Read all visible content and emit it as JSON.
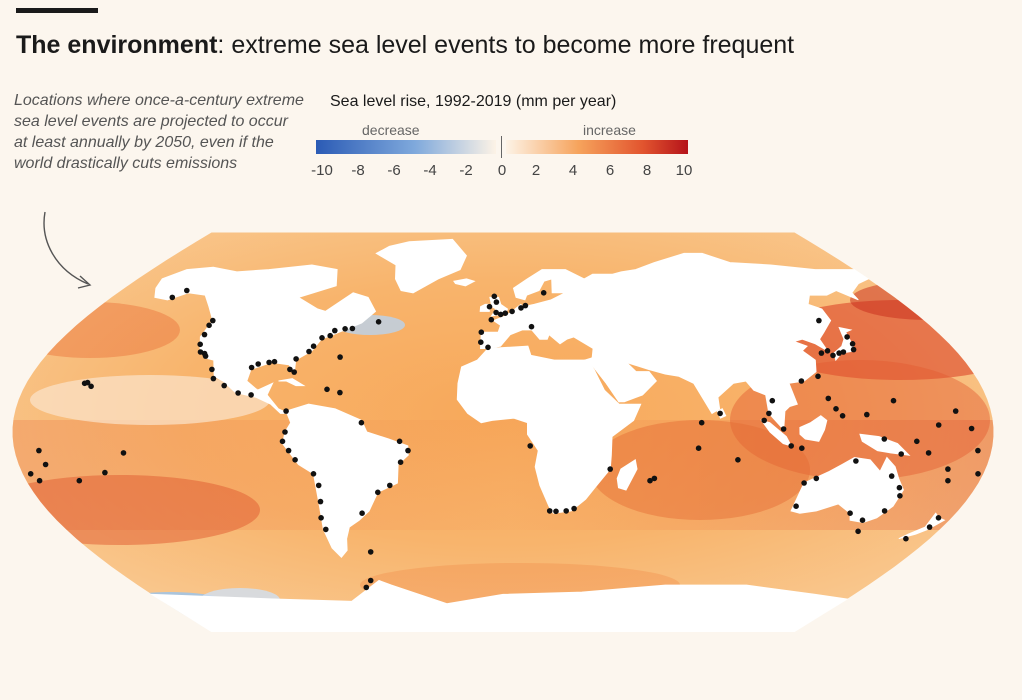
{
  "header": {
    "title_bold": "The environment",
    "title_rest": ": extreme sea level events to become more frequent"
  },
  "annotation": {
    "text": "Locations where once-a-century extreme sea level events are projected to occur at least annually by 2050, even if the world drastically cuts emissions"
  },
  "legend": {
    "title": "Sea level rise, 1992-2019 (mm per year)",
    "decrease_label": "decrease",
    "increase_label": "increase",
    "ticks": [
      "-10",
      "-8",
      "-6",
      "-4",
      "-2",
      "0",
      "2",
      "4",
      "6",
      "8",
      "10"
    ],
    "colors": {
      "decrease": "#2b5bb5",
      "neutral": "#fdf3e6",
      "increase": "#b5131a"
    }
  },
  "map": {
    "projection": "Robinson",
    "ocean_fill_mid": "#f8b56a",
    "land_fill": "#ffffff",
    "marker_color": "#111111",
    "markers": [
      {
        "lon": -158,
        "lat": 21
      },
      {
        "lon": -157,
        "lat": 21.3
      },
      {
        "lon": -155,
        "lat": 19.7
      },
      {
        "lon": -152,
        "lat": 58
      },
      {
        "lon": -149,
        "lat": 61
      },
      {
        "lon": -170,
        "lat": -14
      },
      {
        "lon": -175,
        "lat": -21
      },
      {
        "lon": -177,
        "lat": -18
      },
      {
        "lon": -160,
        "lat": -21
      },
      {
        "lon": -149,
        "lat": -17.5
      },
      {
        "lon": -140,
        "lat": -9
      },
      {
        "lon": -171,
        "lat": -8
      },
      {
        "lon": -124,
        "lat": 48
      },
      {
        "lon": -124,
        "lat": 46
      },
      {
        "lon": -123,
        "lat": 42
      },
      {
        "lon": -122,
        "lat": 37.8
      },
      {
        "lon": -120,
        "lat": 34.5
      },
      {
        "lon": -118,
        "lat": 33.8
      },
      {
        "lon": -117,
        "lat": 32.7
      },
      {
        "lon": -112,
        "lat": 27
      },
      {
        "lon": -110,
        "lat": 23
      },
      {
        "lon": -105,
        "lat": 20
      },
      {
        "lon": -99,
        "lat": 16.8
      },
      {
        "lon": -94,
        "lat": 16
      },
      {
        "lon": -91,
        "lat": 30
      },
      {
        "lon": -89,
        "lat": 30.3
      },
      {
        "lon": -95,
        "lat": 29.3
      },
      {
        "lon": -97,
        "lat": 27.8
      },
      {
        "lon": -82,
        "lat": 27
      },
      {
        "lon": -80,
        "lat": 25.8
      },
      {
        "lon": -81,
        "lat": 31.5
      },
      {
        "lon": -77,
        "lat": 34.7
      },
      {
        "lon": -76,
        "lat": 37
      },
      {
        "lon": -74,
        "lat": 40.6
      },
      {
        "lon": -71,
        "lat": 41.5
      },
      {
        "lon": -70,
        "lat": 43.7
      },
      {
        "lon": -66,
        "lat": 44.5
      },
      {
        "lon": -63,
        "lat": 44.6
      },
      {
        "lon": -53,
        "lat": 47.5
      },
      {
        "lon": -80,
        "lat": 9
      },
      {
        "lon": -80,
        "lat": 0
      },
      {
        "lon": -81,
        "lat": -4
      },
      {
        "lon": -79,
        "lat": -8
      },
      {
        "lon": -77,
        "lat": -12
      },
      {
        "lon": -71,
        "lat": -18
      },
      {
        "lon": -70,
        "lat": -23
      },
      {
        "lon": -71,
        "lat": -30
      },
      {
        "lon": -73,
        "lat": -37
      },
      {
        "lon": -73,
        "lat": -42
      },
      {
        "lon": -66,
        "lat": 18.4
      },
      {
        "lon": -61,
        "lat": 17
      },
      {
        "lon": -64,
        "lat": 32.3
      },
      {
        "lon": -9,
        "lat": 38.7
      },
      {
        "lon": -9,
        "lat": 43
      },
      {
        "lon": -5,
        "lat": 48.4
      },
      {
        "lon": -1,
        "lat": 50.7
      },
      {
        "lon": -3,
        "lat": 51.5
      },
      {
        "lon": -6,
        "lat": 54
      },
      {
        "lon": -3,
        "lat": 56
      },
      {
        "lon": 1,
        "lat": 51.2
      },
      {
        "lon": 4,
        "lat": 52
      },
      {
        "lon": 8,
        "lat": 53.5
      },
      {
        "lon": 10,
        "lat": 54.5
      },
      {
        "lon": -4,
        "lat": 58.5
      },
      {
        "lon": -6,
        "lat": 36.5
      },
      {
        "lon": 12,
        "lat": 45.4
      },
      {
        "lon": 19,
        "lat": 60
      },
      {
        "lon": 10,
        "lat": -6
      },
      {
        "lon": 18.5,
        "lat": -34
      },
      {
        "lon": 21,
        "lat": -34.2
      },
      {
        "lon": 25,
        "lat": -34
      },
      {
        "lon": 28,
        "lat": -33
      },
      {
        "lon": 40,
        "lat": -16
      },
      {
        "lon": 57,
        "lat": -20
      },
      {
        "lon": 55.5,
        "lat": -21
      },
      {
        "lon": 72,
        "lat": -7
      },
      {
        "lon": 73,
        "lat": 4
      },
      {
        "lon": 80,
        "lat": 8
      },
      {
        "lon": 87,
        "lat": -12
      },
      {
        "lon": 96,
        "lat": 5
      },
      {
        "lon": 98,
        "lat": 8
      },
      {
        "lon": 100,
        "lat": 13.5
      },
      {
        "lon": 103,
        "lat": 1.3
      },
      {
        "lon": 106,
        "lat": -6
      },
      {
        "lon": 110,
        "lat": -7
      },
      {
        "lon": 113,
        "lat": 22
      },
      {
        "lon": 120,
        "lat": 24
      },
      {
        "lon": 121,
        "lat": 14.5
      },
      {
        "lon": 123,
        "lat": 10
      },
      {
        "lon": 125,
        "lat": 7
      },
      {
        "lon": 126,
        "lat": 34
      },
      {
        "lon": 130,
        "lat": 33
      },
      {
        "lon": 133,
        "lat": 34
      },
      {
        "lon": 135,
        "lat": 34.5
      },
      {
        "lon": 139.7,
        "lat": 35.5
      },
      {
        "lon": 141,
        "lat": 38
      },
      {
        "lon": 141,
        "lat": 41
      },
      {
        "lon": 129,
        "lat": 35
      },
      {
        "lon": 135,
        "lat": 48
      },
      {
        "lon": 145,
        "lat": 13.5
      },
      {
        "lon": 134,
        "lat": 7.5
      },
      {
        "lon": 140,
        "lat": -3
      },
      {
        "lon": 147,
        "lat": -9.5
      },
      {
        "lon": 152,
        "lat": -4
      },
      {
        "lon": 157,
        "lat": -9
      },
      {
        "lon": 166,
        "lat": -16
      },
      {
        "lon": 167,
        "lat": 9
      },
      {
        "lon": 172,
        "lat": 1.5
      },
      {
        "lon": 178,
        "lat": -18
      },
      {
        "lon": 168,
        "lat": -21
      },
      {
        "lon": 160,
        "lat": 3
      },
      {
        "lon": 175,
        "lat": -8
      },
      {
        "lon": 115,
        "lat": -32
      },
      {
        "lon": 114,
        "lat": -22
      },
      {
        "lon": 118,
        "lat": -20
      },
      {
        "lon": 130.8,
        "lat": -12.5
      },
      {
        "lon": 146,
        "lat": -19
      },
      {
        "lon": 151,
        "lat": -24
      },
      {
        "lon": 153,
        "lat": -27.5
      },
      {
        "lon": 151,
        "lat": -34
      },
      {
        "lon": 145,
        "lat": -38
      },
      {
        "lon": 147,
        "lat": -42.8
      },
      {
        "lon": 138,
        "lat": -35
      },
      {
        "lon": 174.8,
        "lat": -41
      },
      {
        "lon": 174.8,
        "lat": -37
      },
      {
        "lon": 170,
        "lat": -46
      },
      {
        "lon": -58,
        "lat": -51.7
      },
      {
        "lon": -56,
        "lat": -35
      },
      {
        "lon": -48,
        "lat": -26
      },
      {
        "lon": -43,
        "lat": -23
      },
      {
        "lon": -38,
        "lat": -13
      },
      {
        "lon": -35,
        "lat": -8
      },
      {
        "lon": -38,
        "lat": -4
      },
      {
        "lon": -52,
        "lat": 4
      },
      {
        "lon": -64,
        "lat": -64
      },
      {
        "lon": -68,
        "lat": -67
      }
    ]
  }
}
